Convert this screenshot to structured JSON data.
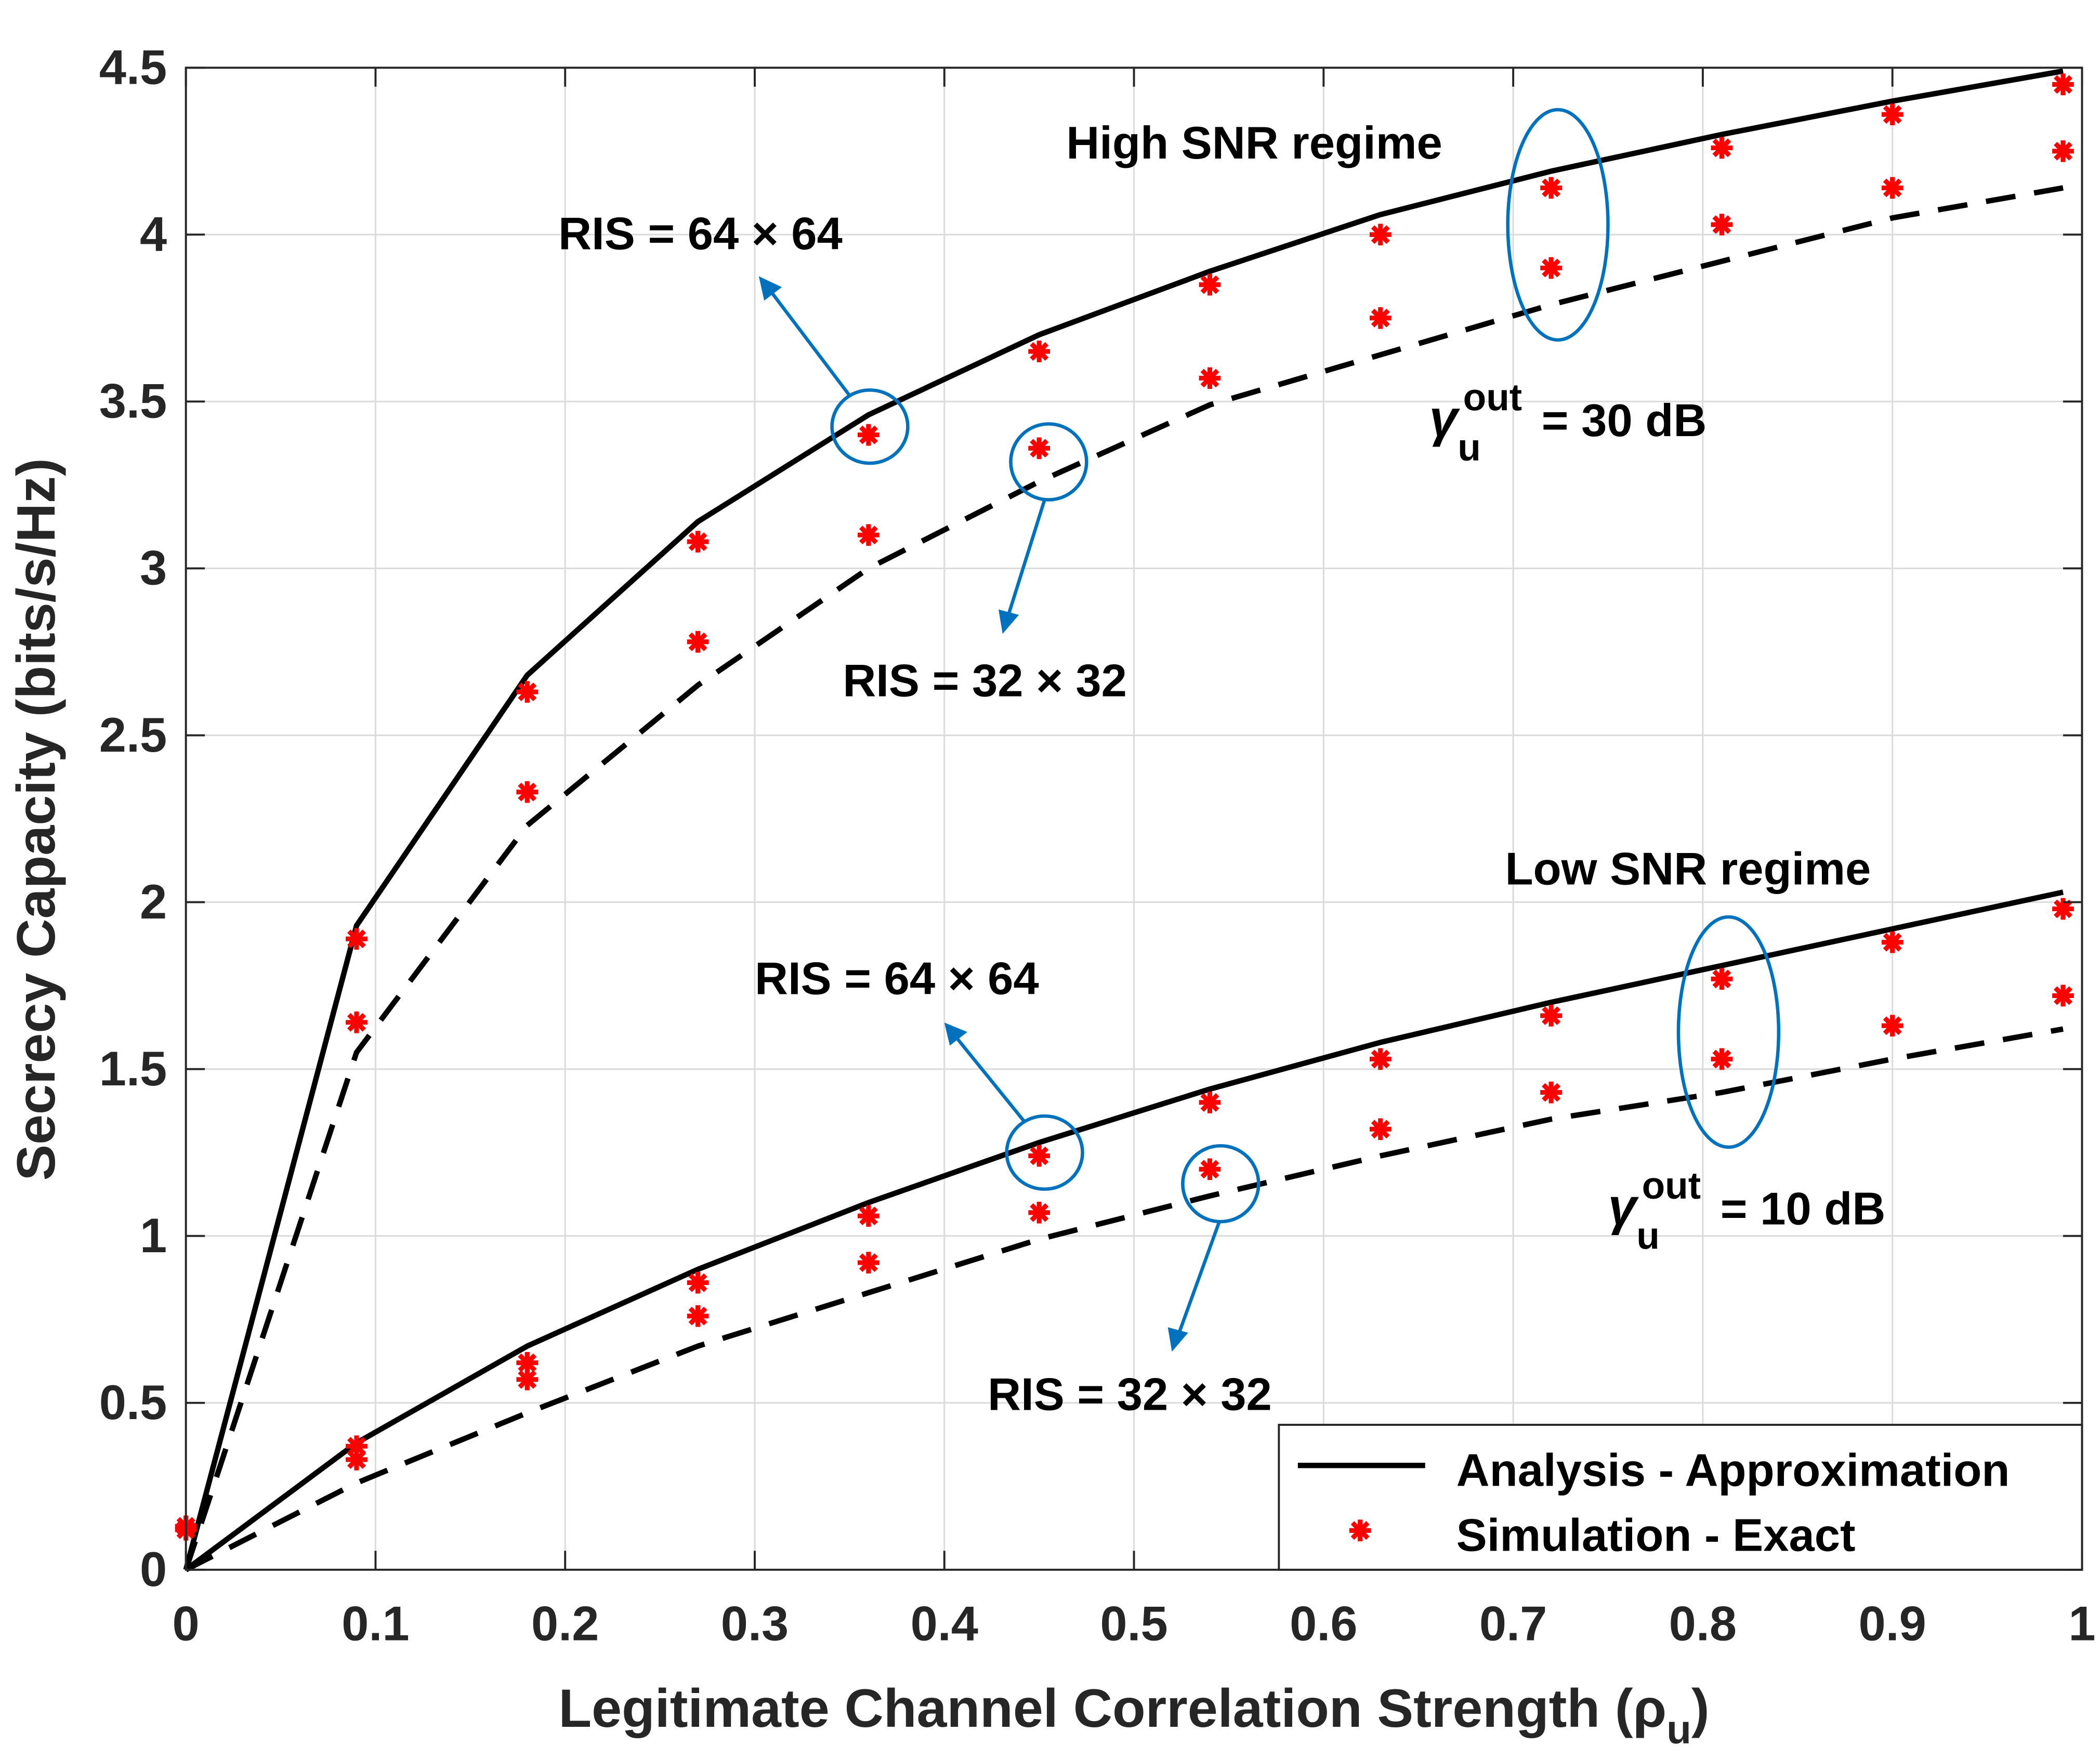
{
  "chart_data": {
    "type": "line",
    "xlabel": "Legitimate Channel Correlation Strength (ρ",
    "xlabel_sub": "u",
    "xlabel_close": ")",
    "ylabel": "Secrecy Capacity (bits/s/Hz)",
    "xlim": [
      0,
      1
    ],
    "ylim": [
      0,
      4.5
    ],
    "xticks": [
      "0",
      "0.1",
      "0.2",
      "0.3",
      "0.4",
      "0.5",
      "0.6",
      "0.7",
      "0.8",
      "0.9",
      "1"
    ],
    "yticks": [
      "0",
      "0.5",
      "1",
      "1.5",
      "2",
      "2.5",
      "3",
      "3.5",
      "4",
      "4.5"
    ],
    "grid": true,
    "legend_position": "bottom-right",
    "legend": [
      "Analysis - Approximation",
      "Simulation - Exact"
    ],
    "colors": {
      "line": "#000000",
      "marker": "#ff0000",
      "annotation": "#0072bd"
    },
    "x": [
      0,
      0.09,
      0.18,
      0.27,
      0.36,
      0.45,
      0.54,
      0.63,
      0.72,
      0.81,
      0.9,
      0.99
    ],
    "series": [
      {
        "group": "high",
        "kind": "analysis",
        "style": "solid",
        "values": [
          0,
          1.93,
          2.68,
          3.14,
          3.46,
          3.7,
          3.89,
          4.06,
          4.19,
          4.3,
          4.4,
          4.49
        ]
      },
      {
        "group": "high",
        "kind": "analysis",
        "style": "dashed",
        "values": [
          0,
          1.55,
          2.23,
          2.65,
          3.0,
          3.26,
          3.49,
          3.64,
          3.79,
          3.92,
          4.05,
          4.14
        ]
      },
      {
        "group": "high",
        "kind": "simulation",
        "values": [
          0.13,
          1.89,
          2.63,
          3.08,
          3.4,
          3.65,
          3.85,
          4.0,
          4.14,
          4.26,
          4.36,
          4.45
        ]
      },
      {
        "group": "high",
        "kind": "simulation",
        "values": [
          0.12,
          1.64,
          2.33,
          2.78,
          3.1,
          3.36,
          3.57,
          3.75,
          3.9,
          4.03,
          4.14,
          4.25
        ]
      },
      {
        "group": "low",
        "kind": "analysis",
        "style": "solid",
        "values": [
          0,
          0.38,
          0.67,
          0.9,
          1.1,
          1.28,
          1.44,
          1.58,
          1.7,
          1.81,
          1.92,
          2.03
        ]
      },
      {
        "group": "low",
        "kind": "analysis",
        "style": "dashed",
        "values": [
          0,
          0.26,
          0.47,
          0.67,
          0.83,
          0.99,
          1.12,
          1.24,
          1.35,
          1.43,
          1.53,
          1.62
        ]
      },
      {
        "group": "low",
        "kind": "simulation",
        "values": [
          0.13,
          0.37,
          0.62,
          0.86,
          1.06,
          1.24,
          1.4,
          1.53,
          1.66,
          1.77,
          1.88,
          1.98
        ]
      },
      {
        "group": "low",
        "kind": "simulation",
        "values": [
          0.12,
          0.33,
          0.57,
          0.76,
          0.92,
          1.07,
          1.2,
          1.32,
          1.43,
          1.53,
          1.63,
          1.72
        ]
      }
    ],
    "annotations": {
      "high_regime": "High SNR regime",
      "low_regime": "Low SNR regime",
      "ris64_high": "RIS = 64 × 64",
      "ris32_high": "RIS = 32 × 32",
      "ris64_low": "RIS = 64 × 64",
      "ris32_low": "RIS = 32 × 32",
      "gamma_symbol": "γ",
      "gamma_sub": "u",
      "gamma_sup": "out",
      "gamma_high_value": "= 30 dB",
      "gamma_low_value": "= 10 dB"
    }
  }
}
